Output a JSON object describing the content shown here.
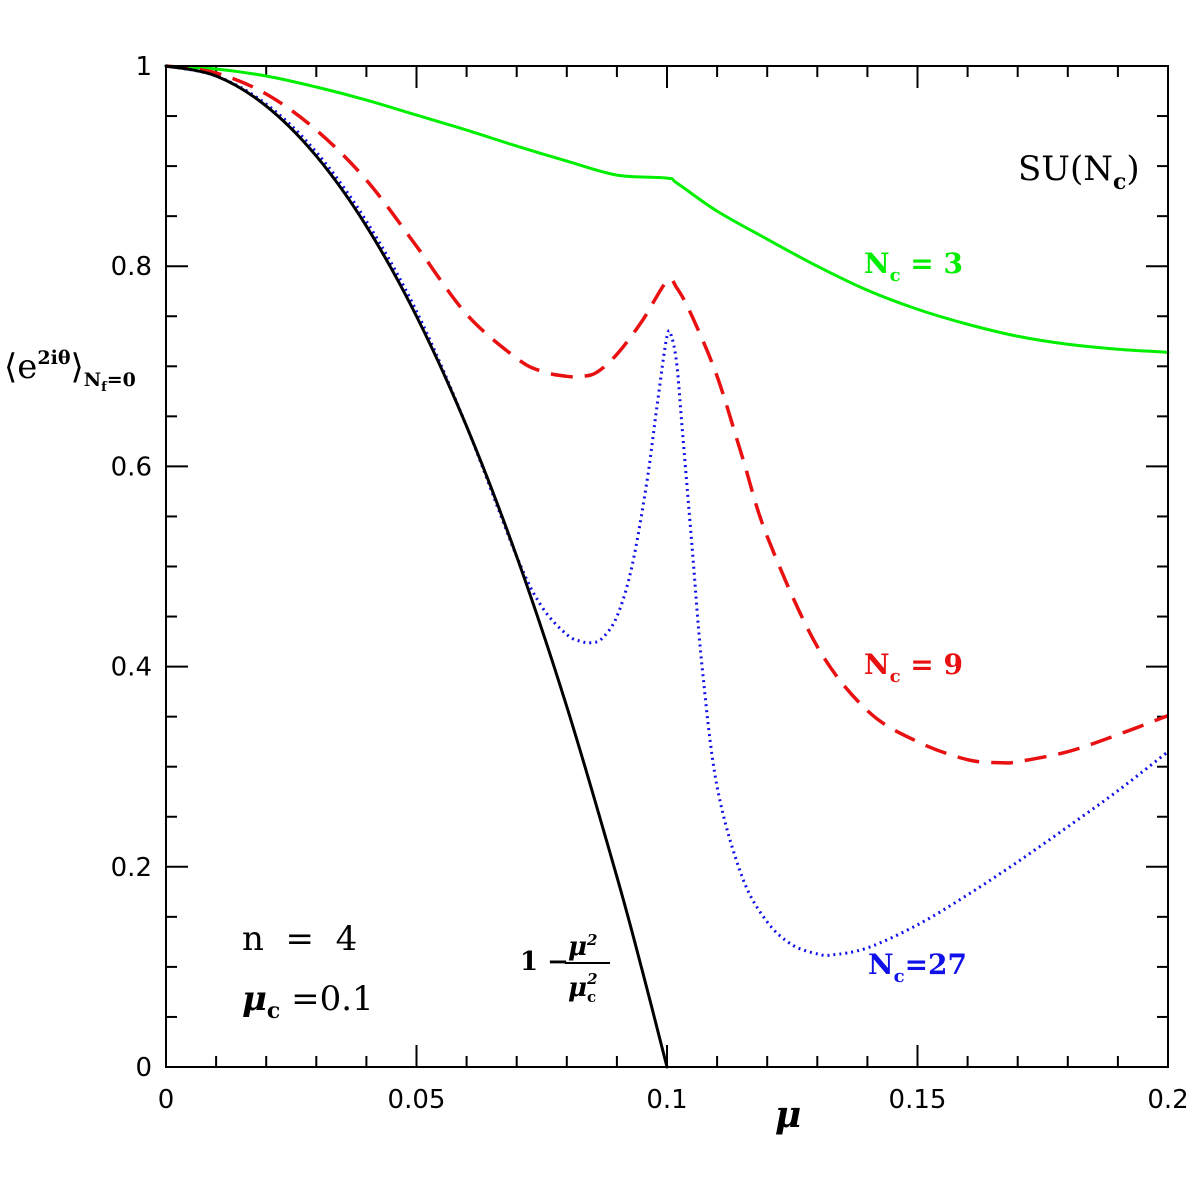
{
  "chart_data": {
    "type": "line",
    "xlabel": "μ",
    "ylabel": {
      "main": "⟨e",
      "sup": "2iθ",
      "close": "⟩",
      "sub": "N",
      "sub_sub": "f",
      "sub_tail": "=0"
    },
    "xlim": [
      0,
      0.2
    ],
    "ylim": [
      0,
      1
    ],
    "x_ticks": [
      0,
      0.05,
      0.1,
      0.15,
      0.2
    ],
    "x_tick_labels": [
      "0",
      "0.05",
      "0.1",
      "0.15",
      "0.2"
    ],
    "y_ticks": [
      0,
      0.2,
      0.4,
      0.6,
      0.8,
      1
    ],
    "y_tick_labels": [
      "0",
      "0.2",
      "0.4",
      "0.6",
      "0.8",
      "1"
    ],
    "grid": false,
    "series": [
      {
        "name": "N_c = 3",
        "color": "#00ee00",
        "style": "solid",
        "x": [
          0,
          0.01,
          0.02,
          0.03,
          0.04,
          0.05,
          0.06,
          0.07,
          0.08,
          0.09,
          0.1,
          0.102,
          0.11,
          0.12,
          0.13,
          0.14,
          0.15,
          0.16,
          0.17,
          0.18,
          0.19,
          0.2
        ],
        "y": [
          1.0,
          0.997,
          0.99,
          0.979,
          0.966,
          0.951,
          0.936,
          0.92,
          0.905,
          0.891,
          0.888,
          0.883,
          0.855,
          0.827,
          0.8,
          0.776,
          0.757,
          0.742,
          0.73,
          0.722,
          0.717,
          0.714
        ]
      },
      {
        "name": "N_c = 9",
        "color": "#e81010",
        "style": "dashed",
        "x": [
          0,
          0.01,
          0.02,
          0.03,
          0.04,
          0.05,
          0.06,
          0.07,
          0.075,
          0.08,
          0.083,
          0.086,
          0.09,
          0.095,
          0.1,
          0.102,
          0.105,
          0.11,
          0.115,
          0.12,
          0.13,
          0.14,
          0.15,
          0.16,
          0.167,
          0.17,
          0.18,
          0.19,
          0.2
        ],
        "y": [
          1.0,
          0.993,
          0.972,
          0.936,
          0.886,
          0.82,
          0.752,
          0.708,
          0.695,
          0.69,
          0.69,
          0.694,
          0.712,
          0.745,
          0.785,
          0.778,
          0.75,
          0.69,
          0.61,
          0.53,
          0.42,
          0.356,
          0.325,
          0.307,
          0.304,
          0.305,
          0.315,
          0.332,
          0.351
        ]
      },
      {
        "name": "N_c=27",
        "color": "#1010e8",
        "style": "dotted",
        "x": [
          0,
          0.01,
          0.02,
          0.03,
          0.04,
          0.05,
          0.06,
          0.07,
          0.075,
          0.08,
          0.083,
          0.085,
          0.087,
          0.09,
          0.093,
          0.096,
          0.098,
          0.1,
          0.101,
          0.102,
          0.103,
          0.105,
          0.107,
          0.11,
          0.115,
          0.12,
          0.125,
          0.13,
          0.133,
          0.14,
          0.15,
          0.16,
          0.17,
          0.18,
          0.19,
          0.2
        ],
        "y": [
          1.0,
          0.99,
          0.962,
          0.914,
          0.845,
          0.755,
          0.64,
          0.51,
          0.46,
          0.432,
          0.425,
          0.424,
          0.428,
          0.45,
          0.5,
          0.585,
          0.66,
          0.73,
          0.728,
          0.7,
          0.64,
          0.52,
          0.4,
          0.28,
          0.19,
          0.145,
          0.122,
          0.113,
          0.112,
          0.119,
          0.142,
          0.172,
          0.205,
          0.24,
          0.276,
          0.315
        ]
      },
      {
        "name": "1 - μ²/μc²",
        "color": "#000000",
        "style": "solid",
        "x": [
          0,
          0.01,
          0.02,
          0.03,
          0.04,
          0.05,
          0.06,
          0.07,
          0.08,
          0.09,
          0.095,
          0.1
        ],
        "y": [
          1.0,
          0.99,
          0.96,
          0.91,
          0.84,
          0.75,
          0.64,
          0.51,
          0.36,
          0.19,
          0.0975,
          0.0
        ]
      }
    ],
    "annotations": {
      "group": {
        "base": "SU(N",
        "sub": "c",
        "tail": ")"
      },
      "nc3": {
        "base": "N",
        "sub": "c",
        "tail": " = 3"
      },
      "nc9": {
        "base": "N",
        "sub": "c",
        "tail": " = 9"
      },
      "nc27": {
        "base": "N",
        "sub": "c",
        "tail": "=27"
      },
      "formula": {
        "one_minus": "1 −",
        "num": "μ",
        "num_sup": "2",
        "den": "μ",
        "den_sub": "c",
        "den_sup": "2"
      },
      "n_label": "n  =  4",
      "mu_c": {
        "base": "μ",
        "sub": "c",
        "tail": " =0.1"
      }
    }
  }
}
